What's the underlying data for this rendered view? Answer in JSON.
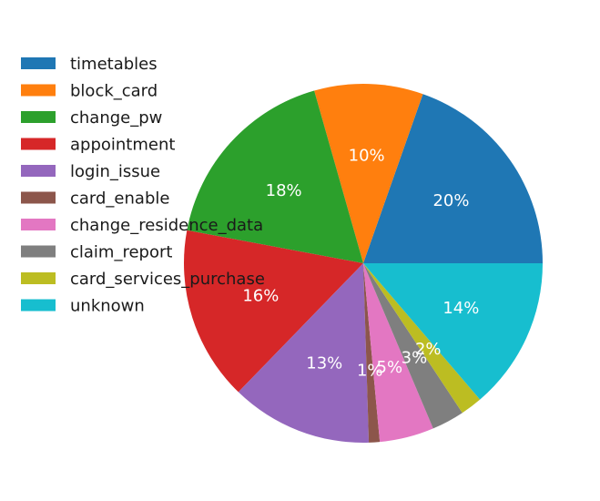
{
  "chart_data": {
    "type": "pie",
    "title": "",
    "start_angle_deg": 0,
    "direction": "counterclockwise",
    "legend_placement": "top-left",
    "slices": [
      {
        "label": "timetables",
        "value": 20,
        "pct_label": "20%",
        "color": "#1f77b4"
      },
      {
        "label": "block_card",
        "value": 10,
        "pct_label": "10%",
        "color": "#ff7f0e"
      },
      {
        "label": "change_pw",
        "value": 18,
        "pct_label": "18%",
        "color": "#2ca02c"
      },
      {
        "label": "appointment",
        "value": 16,
        "pct_label": "16%",
        "color": "#d62728"
      },
      {
        "label": "login_issue",
        "value": 13,
        "pct_label": "13%",
        "color": "#9467bd"
      },
      {
        "label": "card_enable",
        "value": 1,
        "pct_label": "1%",
        "color": "#8c564b"
      },
      {
        "label": "change_residence_data",
        "value": 5,
        "pct_label": "5%",
        "color": "#e377c2"
      },
      {
        "label": "claim_report",
        "value": 3,
        "pct_label": "3%",
        "color": "#7f7f7f"
      },
      {
        "label": "card_services_purchase",
        "value": 2,
        "pct_label": "2%",
        "color": "#bcbd22"
      },
      {
        "label": "unknown",
        "value": 14,
        "pct_label": "14%",
        "color": "#17becf"
      }
    ]
  }
}
